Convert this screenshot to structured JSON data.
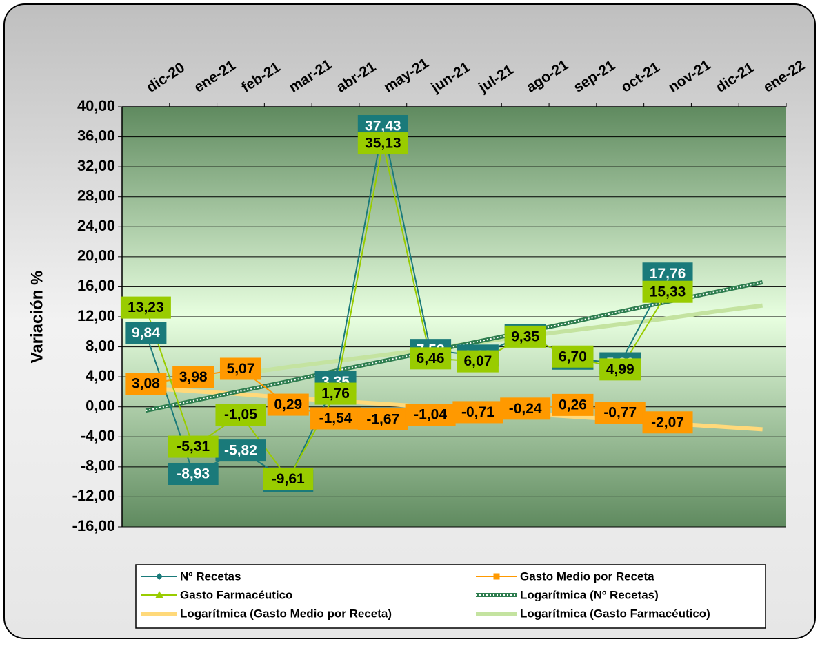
{
  "chart_data": {
    "type": "line",
    "y_label": "Variación %",
    "categories": [
      "dic-20",
      "ene-21",
      "feb-21",
      "mar-21",
      "abr-21",
      "may-21",
      "jun-21",
      "jul-21",
      "ago-21",
      "sep-21",
      "oct-21",
      "nov-21",
      "dic-21",
      "ene-22"
    ],
    "ylim": [
      -16,
      40
    ],
    "yticks": [
      {
        "value": 40,
        "label": "40,00"
      },
      {
        "value": 36,
        "label": "36,00"
      },
      {
        "value": 32,
        "label": "32,00"
      },
      {
        "value": 28,
        "label": "28,00"
      },
      {
        "value": 24,
        "label": "24,00"
      },
      {
        "value": 20,
        "label": "20,00"
      },
      {
        "value": 16,
        "label": "16,00"
      },
      {
        "value": 12,
        "label": "12,00"
      },
      {
        "value": 8,
        "label": "8,00"
      },
      {
        "value": 4,
        "label": "4,00"
      },
      {
        "value": 0,
        "label": "0,00"
      },
      {
        "value": -4,
        "label": "-4,00"
      },
      {
        "value": -8,
        "label": "-8,00"
      },
      {
        "value": -12,
        "label": "-12,00"
      },
      {
        "value": -16,
        "label": "-16,00"
      }
    ],
    "grid": true,
    "legend": "bottom",
    "series": [
      {
        "name": "Nº Recetas",
        "color": "#1a7a7a",
        "marker": "diamond",
        "label_fill": "#1a7a7a",
        "label_text": "#ffffff",
        "values": [
          9.84,
          -8.93,
          -5.82,
          -9.87,
          3.35,
          37.43,
          7.58,
          6.83,
          9.61,
          6.42,
          5.8,
          17.76,
          null,
          null
        ],
        "value_labels": [
          "9,84",
          "-8,93",
          "-5,82",
          "-9,87",
          "3,35",
          "37,43",
          "7,58",
          "6,83",
          "9,61",
          "6,42",
          "5,80",
          "17,76",
          null,
          null
        ]
      },
      {
        "name": "Gasto Medio por Receta",
        "color": "#ff9900",
        "marker": "square",
        "label_fill": "#ff9900",
        "label_text": "#000000",
        "values": [
          3.08,
          3.98,
          5.07,
          0.29,
          -1.54,
          -1.67,
          -1.04,
          -0.71,
          -0.24,
          0.26,
          -0.77,
          -2.07,
          null,
          null
        ],
        "value_labels": [
          "3,08",
          "3,98",
          "5,07",
          "0,29",
          "-1,54",
          "-1,67",
          "-1,04",
          "-0,71",
          "-0,24",
          "0,26",
          "-0,77",
          "-2,07",
          null,
          null
        ]
      },
      {
        "name": "Gasto Farmacéutico",
        "color": "#99cc00",
        "marker": "triangle",
        "label_fill": "#99cc00",
        "label_text": "#000000",
        "values": [
          13.23,
          -5.31,
          -1.05,
          -9.61,
          1.76,
          35.13,
          6.46,
          6.07,
          9.35,
          6.7,
          4.99,
          15.33,
          null,
          null
        ],
        "value_labels": [
          "13,23",
          "-5,31",
          "-1,05",
          "-9,61",
          "1,76",
          "35,13",
          "6,46",
          "6,07",
          "9,35",
          "6,70",
          "4,99",
          "15,33",
          null,
          null
        ]
      },
      {
        "name": "Logarítmica (Nº Recetas)",
        "color": "#2e7d4f",
        "trend": "dotted",
        "values": [
          -0.5,
          0.8,
          2.1,
          3.4,
          4.8,
          6.1,
          7.4,
          8.7,
          10.0,
          11.3,
          12.7,
          14.0,
          15.3,
          16.6
        ]
      },
      {
        "name": "Logarítmica (Gasto Medio por Receta)",
        "color": "#ffd97a",
        "trend": "thick",
        "values": [
          2.5,
          2.1,
          1.7,
          1.2,
          0.8,
          0.4,
          0.0,
          -0.5,
          -0.9,
          -1.3,
          -1.7,
          -2.2,
          -2.6,
          -3.0
        ]
      },
      {
        "name": "Logarítmica (Gasto Farmacéutico)",
        "color": "#c4e3a0",
        "trend": "thick",
        "values": [
          2.8,
          3.6,
          4.4,
          5.3,
          6.1,
          6.9,
          7.7,
          8.6,
          9.4,
          10.2,
          11.0,
          11.8,
          12.7,
          13.5
        ]
      }
    ]
  }
}
